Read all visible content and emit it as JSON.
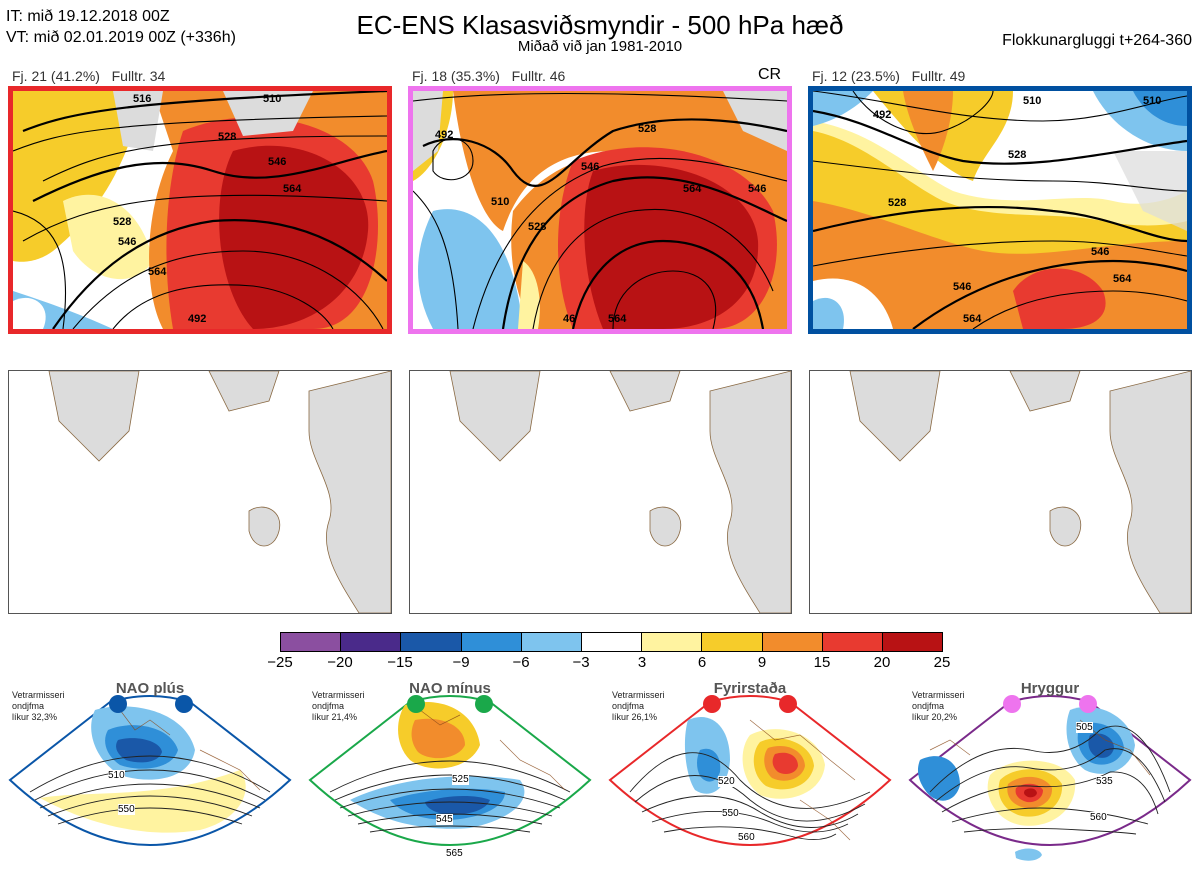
{
  "header": {
    "it_line": "IT: mið 19.12.2018 00Z",
    "vt_line": "VT: mið 02.01.2019 00Z  (+336h)",
    "title": "EC-ENS Klasasviðsmyndir - 500 hPa hæð",
    "subtitle": "Miðað við jan 1981-2010",
    "window": "Flokkunargluggi t+264-360"
  },
  "clusters": [
    {
      "label": "Fj. 21 (41.2%)",
      "fulltr": "Fulltr. 34",
      "tag": "",
      "frame_color": "#e8282a",
      "contour_labels": [
        "510",
        "528",
        "546",
        "564",
        "528",
        "546",
        "564",
        "516",
        "492"
      ]
    },
    {
      "label": "Fj. 18 (35.3%)",
      "fulltr": "Fulltr. 46",
      "tag": "CR",
      "frame_color": "#ee74ee",
      "contour_labels": [
        "492",
        "510",
        "528",
        "546",
        "564",
        "528",
        "546",
        "564",
        "46"
      ]
    },
    {
      "label": "Fj. 12 (23.5%)",
      "fulltr": "Fulltr. 49",
      "tag": "",
      "frame_color": "#0050a0",
      "contour_labels": [
        "492",
        "528",
        "528",
        "546",
        "564",
        "546",
        "564",
        "510",
        "510"
      ]
    }
  ],
  "colorbar": {
    "ticks": [
      "−25",
      "−20",
      "−15",
      "−9",
      "−6",
      "−3",
      "3",
      "6",
      "9",
      "15",
      "20",
      "25"
    ],
    "colors": [
      "#8b4fa0",
      "#4a2a8a",
      "#1a58a8",
      "#2f8fd8",
      "#7ec4ee",
      "#ffffff",
      "#fff3a0",
      "#f6cc2a",
      "#f28c2c",
      "#e83a30",
      "#b81214"
    ]
  },
  "regimes": [
    {
      "name": "NAO plús",
      "prob": [
        "Vetrarmisseri",
        "ondjfma",
        "líkur 32,3%"
      ],
      "color": "#0a56a8",
      "frame": "#0a56a8",
      "labels": [
        "510",
        "550"
      ]
    },
    {
      "name": "NAO mínus",
      "prob": [
        "Vetrarmisseri",
        "ondjfma",
        "líkur 21,4%"
      ],
      "color": "#1aa84a",
      "frame": "#1aa84a",
      "labels": [
        "525",
        "545",
        "565"
      ]
    },
    {
      "name": "Fyrirstaða",
      "prob": [
        "Vetrarmisseri",
        "ondjfma",
        "líkur 26,1%"
      ],
      "color": "#e8282a",
      "frame": "#e8282a",
      "labels": [
        "520",
        "550",
        "560"
      ]
    },
    {
      "name": "Hryggur",
      "prob": [
        "Vetrarmisseri",
        "ondjfma",
        "líkur 20,2%"
      ],
      "color": "#ee74ee",
      "frame": "#7a2a8a",
      "labels": [
        "505",
        "535",
        "560"
      ]
    }
  ]
}
